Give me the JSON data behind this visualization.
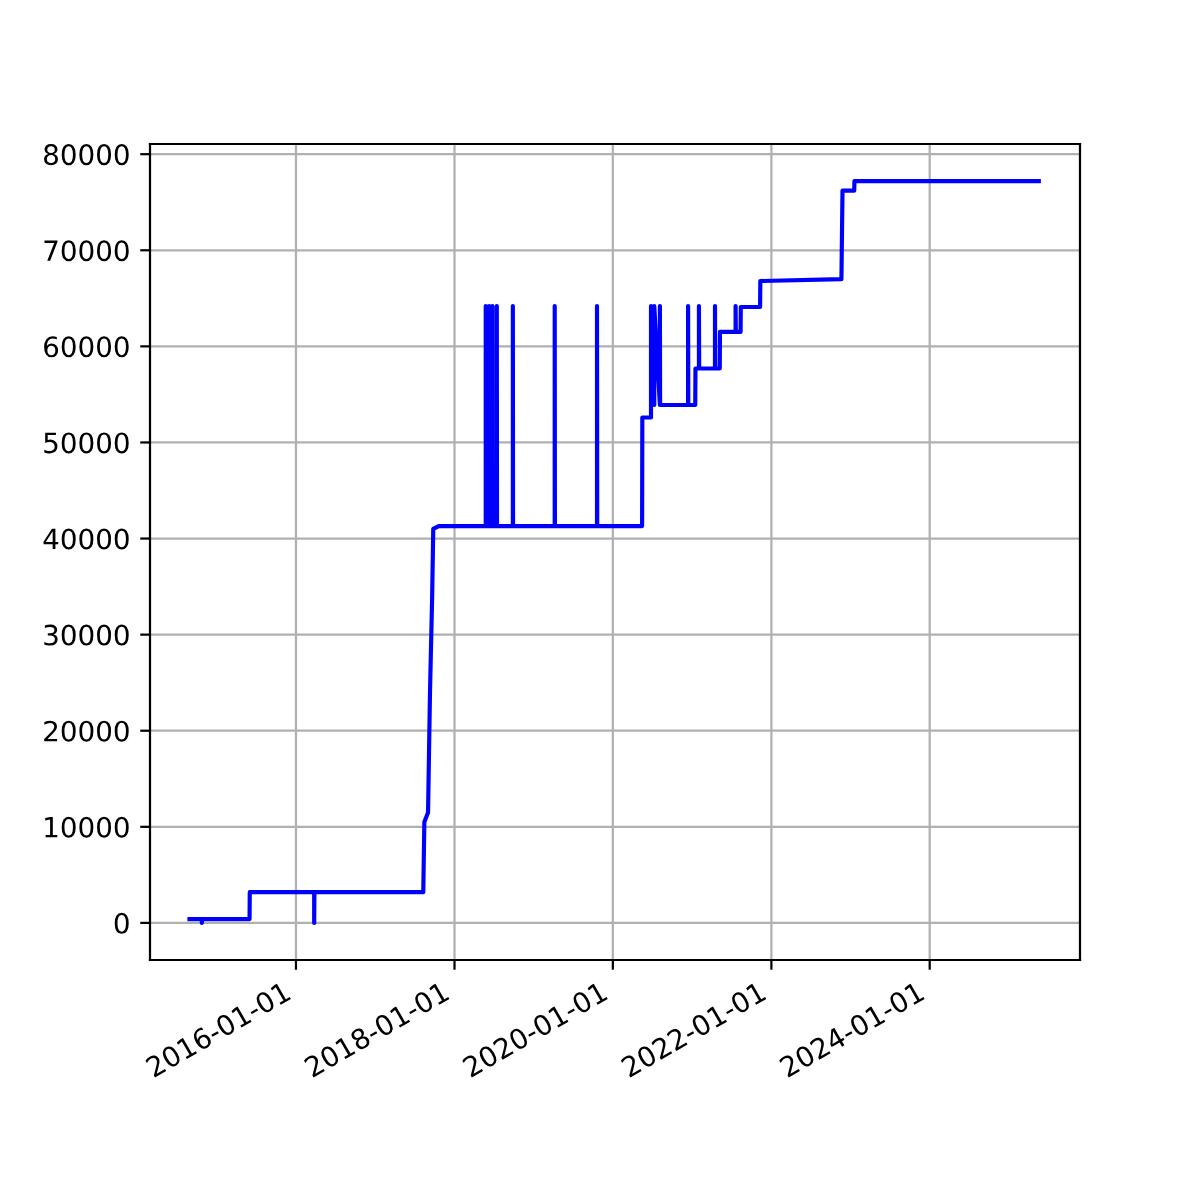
{
  "chart_data": {
    "type": "line",
    "x": [
      "2014-08-28",
      "2014-10-24",
      "2014-10-24",
      "2014-10-25",
      "2015-06-01",
      "2015-06-02",
      "2016-03-25",
      "2016-03-25",
      "2016-03-26",
      "2017-08-10",
      "2017-08-15",
      "2017-09-01",
      "2017-09-10",
      "2017-09-20",
      "2017-09-25",
      "2017-10-20",
      "2018-05-25",
      "2018-05-25",
      "2018-05-26",
      "2018-06-10",
      "2018-06-10",
      "2018-06-11",
      "2018-06-25",
      "2018-06-25",
      "2018-06-26",
      "2018-07-15",
      "2018-07-15",
      "2018-07-16",
      "2018-09-27",
      "2018-09-27",
      "2018-09-28",
      "2019-04-08",
      "2019-04-08",
      "2019-04-09",
      "2019-10-20",
      "2019-10-20",
      "2019-10-21",
      "2020-05-15",
      "2020-05-16",
      "2020-06-25",
      "2020-06-25",
      "2020-07-10",
      "2020-07-10",
      "2020-08-05",
      "2020-08-05",
      "2020-08-06",
      "2020-12-13",
      "2020-12-13",
      "2020-12-14",
      "2021-01-15",
      "2021-01-16",
      "2021-02-01",
      "2021-02-01",
      "2021-02-02",
      "2021-04-16",
      "2021-04-16",
      "2021-04-17",
      "2021-05-08",
      "2021-05-09",
      "2021-07-20",
      "2021-07-20",
      "2021-07-21",
      "2021-08-12",
      "2021-08-13",
      "2021-11-10",
      "2021-11-11",
      "2022-11-20",
      "2022-11-25",
      "2023-01-18",
      "2023-01-19",
      "2025-05-18"
    ],
    "values": [
      400,
      400,
      0,
      400,
      400,
      3200,
      3200,
      0,
      3200,
      3200,
      10500,
      11500,
      24000,
      34000,
      41000,
      41300,
      41300,
      64200,
      41300,
      41300,
      64200,
      41300,
      41300,
      64200,
      41300,
      41300,
      64200,
      41300,
      41300,
      64200,
      41300,
      41300,
      64200,
      41300,
      41300,
      64200,
      41300,
      41300,
      52600,
      52600,
      64200,
      53900,
      64200,
      53900,
      64200,
      53900,
      53900,
      64200,
      53900,
      53900,
      57700,
      57700,
      64200,
      57700,
      57700,
      64200,
      57700,
      57700,
      61500,
      61500,
      64200,
      61500,
      61500,
      64100,
      64100,
      66800,
      67000,
      76200,
      76200,
      77200,
      77200
    ],
    "color": "#0000ff",
    "xlim": [
      "2014-02-27",
      "2025-11-24"
    ],
    "xticks": [
      "2016-01-01",
      "2018-01-01",
      "2020-01-01",
      "2022-01-01",
      "2024-01-01"
    ],
    "ylim": [
      -3860,
      81060
    ],
    "yticks": [
      0,
      10000,
      20000,
      30000,
      40000,
      50000,
      60000,
      70000,
      80000
    ],
    "grid": true
  }
}
